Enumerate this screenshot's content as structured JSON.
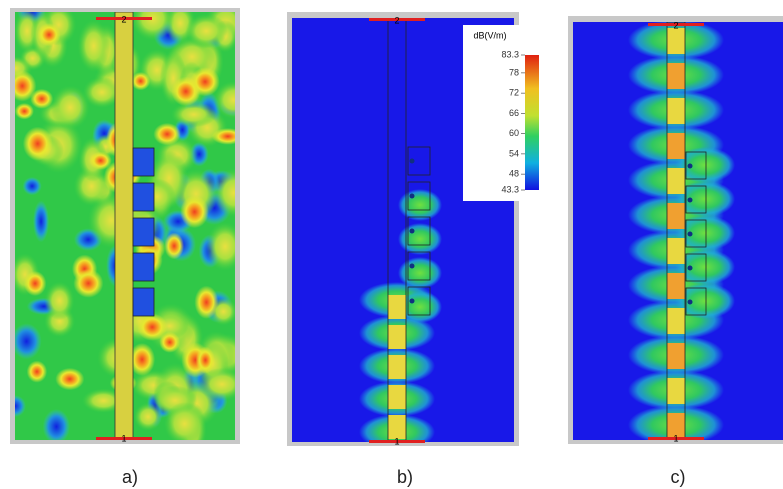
{
  "panels": [
    {
      "label": "a)",
      "port_top": "2",
      "port_bottom": "1"
    },
    {
      "label": "b)",
      "port_top": "2",
      "port_bottom": "1"
    },
    {
      "label": "c)",
      "port_top": "2",
      "port_bottom": "1"
    }
  ],
  "colorbar": {
    "title": "dB(V/m)",
    "ticks": [
      {
        "value": 83.3,
        "label": "83.3"
      },
      78,
      72,
      66,
      60,
      54,
      48,
      {
        "value": 43.3,
        "label": "43.3"
      }
    ]
  }
}
